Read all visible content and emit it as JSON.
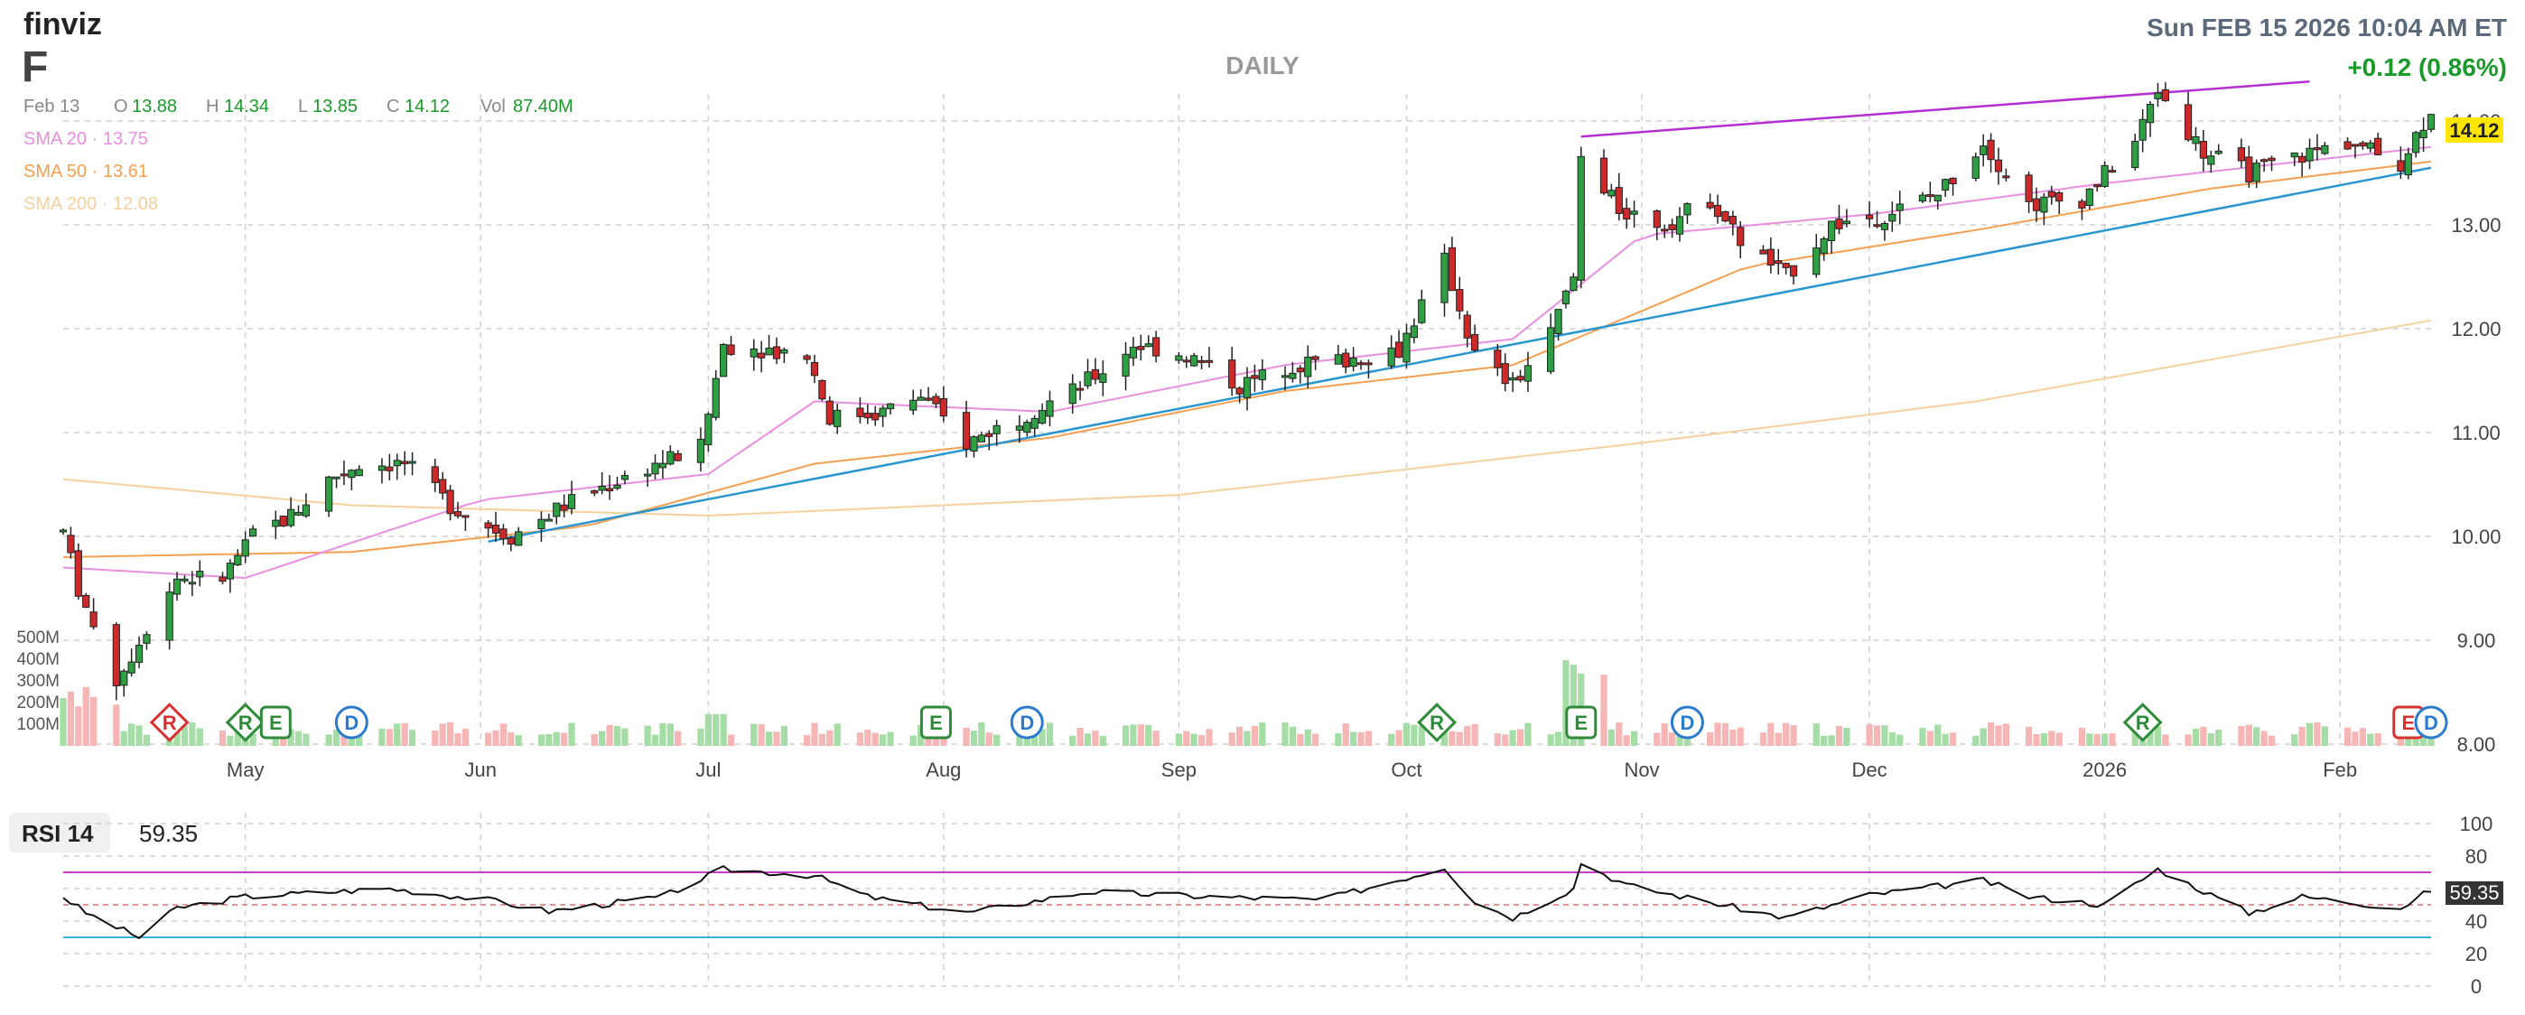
{
  "brand": "finviz",
  "ticker": "F",
  "datetime": "Sun FEB 15 2026 10:04 AM ET",
  "period": "DAILY",
  "change": "+0.12 (0.86%)",
  "ohlc": {
    "date": "Feb 13",
    "o_label": "O",
    "o": "13.88",
    "h_label": "H",
    "h": "14.34",
    "l_label": "L",
    "l": "13.85",
    "c_label": "C",
    "c": "14.12",
    "v_label": "Vol",
    "v": "87.40M"
  },
  "sma": [
    {
      "label": "SMA 20",
      "value": "13.75",
      "color": "#e88fe0"
    },
    {
      "label": "SMA 50",
      "value": "13.61",
      "color": "#f5a050"
    },
    {
      "label": "SMA 200",
      "value": "12.08",
      "color": "#f7d0a0"
    }
  ],
  "last_price_badge": "14.12",
  "rsi": {
    "label": "RSI 14",
    "value": "59.35",
    "badge": "59.35"
  },
  "colors": {
    "up": "#2ea043",
    "down": "#cc2a2a",
    "vol_up": "#a6dca6",
    "vol_down": "#f6b6b6",
    "trend_up": "#2a96d0",
    "trend_top": "#b52fd0",
    "grid": "#d0d0d0",
    "badge": "#ffe600"
  },
  "chart_data": {
    "type": "candlestick",
    "x_range": [
      "2025-04-07",
      "2026-02-13"
    ],
    "y_axis": {
      "range": [
        8.0,
        14.4
      ],
      "ticks": [
        "8.00",
        "9.00",
        "10.00",
        "11.00",
        "12.00",
        "13.00",
        "14.00"
      ]
    },
    "x_ticks": [
      "May",
      "Jun",
      "Jul",
      "Aug",
      "Sep",
      "Oct",
      "Nov",
      "Dec",
      "2026",
      "Feb"
    ],
    "volume_ticks": [
      "100M",
      "200M",
      "300M",
      "400M",
      "500M"
    ],
    "price_path": [
      [
        "2025-04-07",
        10.05
      ],
      [
        "2025-04-09",
        9.5
      ],
      [
        "2025-04-14",
        8.6
      ],
      [
        "2025-04-17",
        9.0
      ],
      [
        "2025-04-22",
        9.6
      ],
      [
        "2025-04-28",
        9.6
      ],
      [
        "2025-05-02",
        10.0
      ],
      [
        "2025-05-07",
        10.2
      ],
      [
        "2025-05-12",
        10.55
      ],
      [
        "2025-05-16",
        10.7
      ],
      [
        "2025-05-22",
        10.7
      ],
      [
        "2025-05-28",
        10.3
      ],
      [
        "2025-06-02",
        10.1
      ],
      [
        "2025-06-05",
        10.0
      ],
      [
        "2025-06-12",
        10.3
      ],
      [
        "2025-06-18",
        10.5
      ],
      [
        "2025-06-24",
        10.7
      ],
      [
        "2025-06-30",
        10.85
      ],
      [
        "2025-07-03",
        11.85
      ],
      [
        "2025-07-09",
        11.8
      ],
      [
        "2025-07-14",
        11.75
      ],
      [
        "2025-07-17",
        11.15
      ],
      [
        "2025-07-24",
        11.2
      ],
      [
        "2025-07-29",
        11.35
      ],
      [
        "2025-08-04",
        10.9
      ],
      [
        "2025-08-11",
        11.15
      ],
      [
        "2025-08-18",
        11.4
      ],
      [
        "2025-08-22",
        11.6
      ],
      [
        "2025-08-26",
        11.85
      ],
      [
        "2025-09-02",
        11.75
      ],
      [
        "2025-09-09",
        11.45
      ],
      [
        "2025-09-16",
        11.65
      ],
      [
        "2025-09-23",
        11.7
      ],
      [
        "2025-09-30",
        11.8
      ],
      [
        "2025-10-06",
        12.65
      ],
      [
        "2025-10-10",
        11.75
      ],
      [
        "2025-10-15",
        11.45
      ],
      [
        "2025-10-20",
        11.95
      ],
      [
        "2025-10-23",
        12.5
      ],
      [
        "2025-10-24",
        13.65
      ],
      [
        "2025-10-29",
        13.15
      ],
      [
        "2025-11-04",
        13.0
      ],
      [
        "2025-11-10",
        13.25
      ],
      [
        "2025-11-14",
        12.85
      ],
      [
        "2025-11-20",
        12.5
      ],
      [
        "2025-11-26",
        13.0
      ],
      [
        "2025-12-03",
        13.1
      ],
      [
        "2025-12-10",
        13.3
      ],
      [
        "2025-12-16",
        13.8
      ],
      [
        "2025-12-22",
        13.2
      ],
      [
        "2025-12-29",
        13.25
      ],
      [
        "2026-01-05",
        13.8
      ],
      [
        "2026-01-08",
        14.3
      ],
      [
        "2026-01-14",
        13.7
      ],
      [
        "2026-01-20",
        13.5
      ],
      [
        "2026-01-26",
        13.65
      ],
      [
        "2026-02-02",
        13.8
      ],
      [
        "2026-02-09",
        13.6
      ],
      [
        "2026-02-13",
        14.12
      ]
    ],
    "sma20_path": [
      [
        "2025-04-07",
        9.7
      ],
      [
        "2025-05-01",
        9.6
      ],
      [
        "2025-06-01",
        10.35
      ],
      [
        "2025-07-01",
        10.6
      ],
      [
        "2025-07-15",
        11.3
      ],
      [
        "2025-08-15",
        11.2
      ],
      [
        "2025-09-15",
        11.65
      ],
      [
        "2025-10-15",
        11.9
      ],
      [
        "2025-11-01",
        12.9
      ],
      [
        "2025-12-01",
        13.1
      ],
      [
        "2026-01-01",
        13.4
      ],
      [
        "2026-02-13",
        13.75
      ]
    ],
    "sma50_path": [
      [
        "2025-04-07",
        9.8
      ],
      [
        "2025-05-15",
        9.85
      ],
      [
        "2025-06-15",
        10.1
      ],
      [
        "2025-07-15",
        10.7
      ],
      [
        "2025-08-15",
        10.95
      ],
      [
        "2025-09-15",
        11.4
      ],
      [
        "2025-10-15",
        11.65
      ],
      [
        "2025-11-15",
        12.6
      ],
      [
        "2025-12-15",
        12.95
      ],
      [
        "2026-01-15",
        13.35
      ],
      [
        "2026-02-13",
        13.61
      ]
    ],
    "sma200_path": [
      [
        "2025-04-07",
        10.55
      ],
      [
        "2025-05-15",
        10.3
      ],
      [
        "2025-07-01",
        10.2
      ],
      [
        "2025-09-01",
        10.4
      ],
      [
        "2025-11-01",
        10.9
      ],
      [
        "2025-12-15",
        11.3
      ],
      [
        "2026-02-13",
        12.08
      ]
    ],
    "trendline_lower": [
      [
        "2025-06-02",
        9.95
      ],
      [
        "2026-02-13",
        13.55
      ]
    ],
    "trendline_upper": [
      [
        "2025-10-24",
        13.85
      ],
      [
        "2026-01-28",
        14.38
      ]
    ],
    "events": [
      {
        "date": "2025-04-21",
        "type": "R"
      },
      {
        "date": "2025-05-01",
        "type": "R"
      },
      {
        "date": "2025-05-05",
        "type": "E"
      },
      {
        "date": "2025-05-15",
        "type": "D"
      },
      {
        "date": "2025-07-31",
        "type": "E"
      },
      {
        "date": "2025-08-12",
        "type": "D"
      },
      {
        "date": "2025-10-05",
        "type": "R"
      },
      {
        "date": "2025-10-24",
        "type": "E"
      },
      {
        "date": "2025-11-07",
        "type": "D"
      },
      {
        "date": "2026-01-06",
        "type": "R"
      },
      {
        "date": "2026-02-10",
        "type": "E"
      },
      {
        "date": "2026-02-13",
        "type": "D"
      }
    ],
    "rsi_ticks": [
      "0",
      "20",
      "40",
      "60",
      "80",
      "100"
    ],
    "rsi_levels": {
      "overbought": 70,
      "oversold": 30,
      "mid": 50
    },
    "rsi_path": [
      [
        "2025-04-07",
        55
      ],
      [
        "2025-04-10",
        45
      ],
      [
        "2025-04-17",
        30
      ],
      [
        "2025-04-22",
        48
      ],
      [
        "2025-05-01",
        55
      ],
      [
        "2025-05-20",
        60
      ],
      [
        "2025-06-02",
        53
      ],
      [
        "2025-06-10",
        46
      ],
      [
        "2025-06-25",
        55
      ],
      [
        "2025-07-03",
        72
      ],
      [
        "2025-07-15",
        68
      ],
      [
        "2025-07-22",
        55
      ],
      [
        "2025-08-04",
        45
      ],
      [
        "2025-08-20",
        58
      ],
      [
        "2025-09-05",
        55
      ],
      [
        "2025-09-20",
        53
      ],
      [
        "2025-10-06",
        73
      ],
      [
        "2025-10-10",
        52
      ],
      [
        "2025-10-15",
        42
      ],
      [
        "2025-10-23",
        60
      ],
      [
        "2025-10-24",
        76
      ],
      [
        "2025-10-30",
        62
      ],
      [
        "2025-11-20",
        42
      ],
      [
        "2025-12-01",
        56
      ],
      [
        "2025-12-16",
        65
      ],
      [
        "2025-12-22",
        55
      ],
      [
        "2026-01-01",
        50
      ],
      [
        "2026-01-08",
        72
      ],
      [
        "2026-01-20",
        45
      ],
      [
        "2026-01-27",
        55
      ],
      [
        "2026-02-09",
        48
      ],
      [
        "2026-02-13",
        59.35
      ]
    ]
  }
}
